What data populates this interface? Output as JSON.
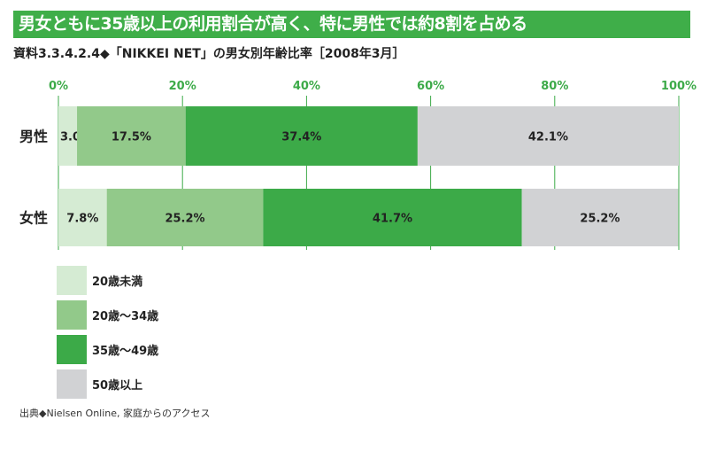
{
  "chart_data": {
    "type": "bar",
    "stacked": true,
    "orientation": "horizontal",
    "title": "男女ともに35歳以上の利用割合が高く、特に男性では約8割を占める",
    "subtitle": "資料3.3.4.2.4◆「NIKKEI NET」の男女別年齢比率［2008年3月］",
    "categories": [
      "男性",
      "女性"
    ],
    "xlim": [
      0,
      100
    ],
    "xticks": [
      "0%",
      "20%",
      "40%",
      "60%",
      "80%",
      "100%"
    ],
    "series": [
      {
        "name": "20歳未満",
        "color": "#d5ebd3",
        "values": [
          3.0,
          7.8
        ],
        "labels": [
          "3.0%",
          "7.8%"
        ]
      },
      {
        "name": "20歳～34歳",
        "color": "#92c98a",
        "values": [
          17.5,
          25.2
        ],
        "labels": [
          "17.5%",
          "25.2%"
        ]
      },
      {
        "name": "35歳～49歳",
        "color": "#3caa48",
        "values": [
          37.4,
          41.7
        ],
        "labels": [
          "37.4%",
          "41.7%"
        ]
      },
      {
        "name": "50歳以上",
        "color": "#d1d2d4",
        "values": [
          42.1,
          25.2
        ],
        "labels": [
          "42.1%",
          "25.2%"
        ]
      }
    ],
    "legend_position": "bottom-left",
    "source": "出典◆Nielsen Online, 家庭からのアクセス"
  }
}
